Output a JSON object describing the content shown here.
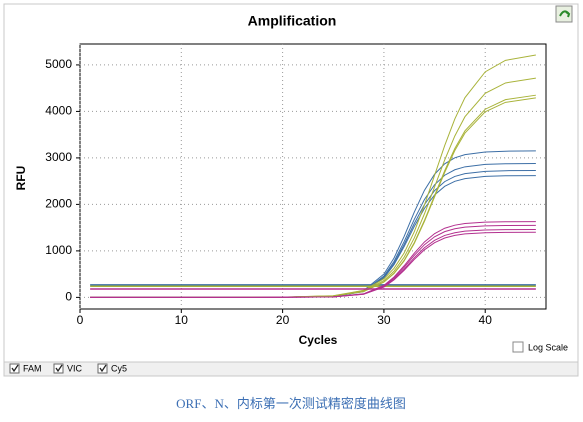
{
  "chart_data": {
    "type": "line",
    "title": "Amplification",
    "x_label": "Cycles",
    "y_label": "RFU",
    "x": [
      1,
      5,
      10,
      15,
      20,
      25,
      28,
      30,
      31,
      32,
      33,
      34,
      35,
      36,
      37,
      38,
      40,
      42,
      45
    ],
    "xlim": [
      0,
      46
    ],
    "xticks": [
      0,
      10,
      20,
      30,
      40
    ],
    "ylim": [
      -250,
      5450
    ],
    "yticks": [
      0,
      1000,
      2000,
      3000,
      4000,
      5000
    ],
    "grid": true,
    "log_scale": false,
    "log_scale_label": "Log Scale",
    "series": [
      {
        "name": "FAM",
        "color": "#3d6fa6",
        "threshold": 270,
        "curves": [
          [
            0,
            0,
            0,
            0,
            5,
            21,
            148,
            501,
            847,
            1314,
            1836,
            2303,
            2649,
            2873,
            3002,
            3071,
            3128,
            3144,
            3150
          ],
          [
            0,
            0,
            0,
            0,
            6,
            20,
            135,
            458,
            775,
            1201,
            1679,
            2105,
            2422,
            2627,
            2745,
            2808,
            2860,
            2874,
            2880
          ],
          [
            0,
            0,
            0,
            0,
            5,
            19,
            128,
            434,
            734,
            1138,
            1592,
            1996,
            2296,
            2490,
            2602,
            2662,
            2711,
            2725,
            2730
          ],
          [
            0,
            0,
            0,
            0,
            5,
            18,
            123,
            417,
            705,
            1093,
            1527,
            1915,
            2203,
            2389,
            2497,
            2555,
            2602,
            2615,
            2620
          ]
        ]
      },
      {
        "name": "VIC",
        "color": "#a9b33a",
        "threshold": 240,
        "curves": [
          [
            0,
            0,
            0,
            0,
            5,
            35,
            152,
            399,
            625,
            956,
            1412,
            1985,
            2625,
            3266,
            3838,
            4295,
            4851,
            5098,
            5213
          ],
          [
            0,
            0,
            0,
            0,
            5,
            32,
            138,
            361,
            565,
            865,
            1278,
            1796,
            2375,
            2955,
            3472,
            3886,
            4389,
            4612,
            4717
          ],
          [
            0,
            0,
            0,
            0,
            4,
            29,
            127,
            333,
            521,
            797,
            1178,
            1656,
            2190,
            2724,
            3202,
            3583,
            4047,
            4253,
            4349
          ],
          [
            0,
            0,
            0,
            0,
            4,
            29,
            125,
            328,
            514,
            786,
            1162,
            1633,
            2160,
            2687,
            3158,
            3534,
            3992,
            4195,
            4290
          ]
        ]
      },
      {
        "name": "Cy5",
        "color": "#b3308f",
        "threshold": 180,
        "curves": [
          [
            0,
            0,
            0,
            0,
            3,
            11,
            77,
            259,
            438,
            680,
            950,
            1192,
            1371,
            1487,
            1553,
            1589,
            1619,
            1627,
            1630
          ],
          [
            0,
            0,
            0,
            0,
            3,
            11,
            73,
            246,
            417,
            646,
            904,
            1133,
            1304,
            1414,
            1477,
            1511,
            1539,
            1547,
            1550
          ],
          [
            0,
            0,
            0,
            0,
            3,
            10,
            69,
            232,
            393,
            609,
            851,
            1067,
            1228,
            1332,
            1391,
            1424,
            1450,
            1457,
            1460
          ],
          [
            0,
            0,
            0,
            0,
            3,
            10,
            66,
            223,
            377,
            584,
            816,
            1023,
            1177,
            1277,
            1334,
            1365,
            1390,
            1397,
            1400
          ]
        ]
      }
    ]
  },
  "caption": "ORF、N、内标第一次测试精密度曲线图"
}
